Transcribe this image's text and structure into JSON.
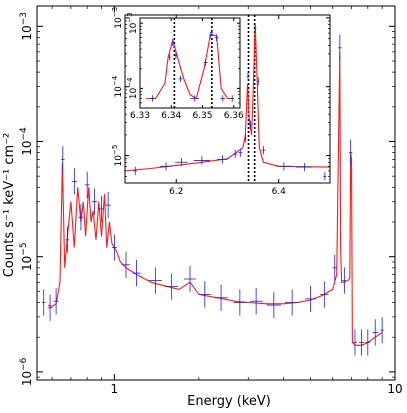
{
  "chart_data": [
    {
      "type": "line",
      "xlabel": "Energy (keV)",
      "ylabel": "Counts s⁻¹ keV⁻¹ cm⁻²",
      "xscale": "log",
      "yscale": "log",
      "xlim": [
        0.53,
        10
      ],
      "ylim": [
        8.5e-07,
        0.0015
      ],
      "x_ticks": [
        {
          "v": 1,
          "label": "1"
        },
        {
          "v": 10,
          "label": "10"
        }
      ],
      "y_ticks": [
        {
          "v": 1e-06,
          "base": "10",
          "exp": "−6"
        },
        {
          "v": 1e-05,
          "base": "10",
          "exp": "−5"
        },
        {
          "v": 0.0001,
          "base": "10",
          "exp": "−4"
        },
        {
          "v": 0.001,
          "base": "10",
          "exp": "−3"
        }
      ],
      "series": [
        {
          "kind": "model",
          "x": [
            0.58,
            0.6,
            0.62,
            0.64,
            0.653,
            0.665,
            0.68,
            0.7,
            0.72,
            0.74,
            0.76,
            0.775,
            0.79,
            0.81,
            0.826,
            0.84,
            0.86,
            0.88,
            0.9,
            0.922,
            0.94,
            0.96,
            0.98,
            1.0,
            1.02,
            1.05,
            1.1,
            1.2,
            1.35,
            1.5,
            1.7,
            1.86,
            2.0,
            2.2,
            2.45,
            2.7,
            3.0,
            3.5,
            4.0,
            4.5,
            5.0,
            5.5,
            6.0,
            6.2,
            6.3,
            6.36,
            6.4,
            6.45,
            6.6,
            6.8,
            6.9,
            6.95,
            7.0,
            7.05,
            7.2,
            7.6,
            8.0,
            8.5,
            9.0
          ],
          "y": [
            3.8e-06,
            3.7e-06,
            3.9e-06,
            6e-06,
            6.5e-05,
            8e-06,
            1.5e-05,
            3e-05,
            1.2e-05,
            4e-05,
            2e-05,
            3e-05,
            1.5e-05,
            4e-05,
            2e-05,
            2.5e-05,
            1.4e-05,
            3e-05,
            1.5e-05,
            3.5e-05,
            1.2e-05,
            2e-05,
            1.3e-05,
            1.2e-05,
            1.1e-05,
            9e-06,
            8e-06,
            7e-06,
            6e-06,
            5.6e-06,
            5.2e-06,
            6e-06,
            4.7e-06,
            4.5e-06,
            4.3e-06,
            4.1e-06,
            4e-06,
            3.9e-06,
            3.9e-06,
            4e-06,
            4.2e-06,
            4.6e-06,
            5.2e-06,
            7e-06,
            0.00012,
            0.0006,
            1.2e-05,
            6e-06,
            6e-06,
            6.2e-06,
            6.5e-06,
            8e-05,
            7e-05,
            1.8e-06,
            1.7e-06,
            1.7e-06,
            1.8e-06,
            2e-06,
            2.2e-06
          ]
        },
        {
          "kind": "data",
          "x": [
            0.56,
            0.59,
            0.62,
            0.655,
            0.68,
            0.72,
            0.76,
            0.8,
            0.85,
            0.9,
            0.95,
            1.0,
            1.1,
            1.2,
            1.4,
            1.6,
            1.86,
            2.1,
            2.4,
            2.8,
            3.2,
            3.7,
            4.3,
            5.0,
            5.6,
            6.1,
            6.36,
            6.6,
            6.95,
            7.2,
            7.6,
            8.0,
            8.5,
            9.0
          ],
          "y": [
            4e-06,
            3.6e-06,
            4.1e-06,
            7e-05,
            1.4e-05,
            4.5e-05,
            2.2e-05,
            4.2e-05,
            3e-05,
            2.6e-05,
            2.8e-05,
            1.2e-05,
            8.5e-06,
            7.2e-06,
            6.2e-06,
            5.5e-06,
            6.4e-06,
            4.7e-06,
            4.4e-06,
            4e-06,
            4.1e-06,
            3.8e-06,
            4e-06,
            4.3e-06,
            4.7e-06,
            8e-06,
            0.00065,
            6.2e-06,
            8e-05,
            1.8e-06,
            1.8e-06,
            1.8e-06,
            2.2e-06,
            2.3e-06
          ]
        }
      ]
    },
    {
      "type": "line",
      "xscale": "linear",
      "yscale": "log",
      "xlim": [
        6.1,
        6.5
      ],
      "ylim": [
        4e-06,
        0.0011
      ],
      "x_ticks": [
        {
          "v": 6.2,
          "label": "6.2"
        },
        {
          "v": 6.4,
          "label": "6.4"
        }
      ],
      "y_ticks": [
        {
          "v": 1e-05,
          "base": "10",
          "exp": "−5"
        },
        {
          "v": 0.0001,
          "base": "10",
          "exp": "−4"
        },
        {
          "v": 0.001,
          "base": "10",
          "exp": "−3"
        }
      ],
      "series": [
        {
          "kind": "model",
          "x": [
            6.1,
            6.15,
            6.2,
            6.25,
            6.3,
            6.33,
            6.335,
            6.339,
            6.343,
            6.347,
            6.35,
            6.354,
            6.358,
            6.362,
            6.37,
            6.4,
            6.5
          ],
          "y": [
            6e-06,
            6.5e-06,
            7.2e-06,
            8e-06,
            9e-06,
            1.3e-05,
            2e-05,
            0.00011,
            3e-05,
            2e-05,
            8e-05,
            0.0008,
            0.00012,
            1.3e-05,
            8e-06,
            7e-06,
            6.8e-06
          ],
          "yerr": []
        },
        {
          "kind": "data",
          "x": [
            6.12,
            6.18,
            6.21,
            6.25,
            6.29,
            6.315,
            6.325,
            6.335,
            6.34,
            6.345,
            6.354,
            6.36,
            6.37,
            6.41,
            6.45,
            6.49
          ],
          "y": [
            6e-06,
            7e-06,
            8e-06,
            8.5e-06,
            8.8e-06,
            1.05e-05,
            1.1e-05,
            1.8e-05,
            0.00014,
            2.8e-05,
            0.0007,
            0.00012,
            1.2e-05,
            7e-06,
            6.8e-06,
            5e-06
          ]
        }
      ],
      "vlines": [
        6.341,
        6.353
      ]
    },
    {
      "type": "line",
      "xscale": "linear",
      "yscale": "log",
      "xlim": [
        6.33,
        6.362
      ],
      "ylim": [
        5e-05,
        0.0012
      ],
      "x_ticks": [
        {
          "v": 6.33,
          "label": "6.33"
        },
        {
          "v": 6.34,
          "label": "6.34"
        },
        {
          "v": 6.35,
          "label": "6.35"
        },
        {
          "v": 6.36,
          "label": "6.36"
        }
      ],
      "y_ticks": [
        {
          "v": 0.0001,
          "base": "10",
          "exp": "−4"
        },
        {
          "v": 0.001,
          "base": "10",
          "exp": "−3"
        }
      ],
      "series": [
        {
          "kind": "model",
          "x": [
            6.332,
            6.335,
            6.338,
            6.339,
            6.3405,
            6.342,
            6.344,
            6.346,
            6.348,
            6.3505,
            6.3525,
            6.3545,
            6.356,
            6.358,
            6.36
          ],
          "y": [
            7e-05,
            7e-05,
            0.00012,
            0.0003,
            0.00055,
            0.0003,
            0.00014,
            8e-05,
            7e-05,
            0.0002,
            0.00065,
            0.00065,
            0.0001,
            7e-05,
            7e-05
          ]
        },
        {
          "kind": "data",
          "x": [
            6.334,
            6.3395,
            6.3405,
            6.3415,
            6.343,
            6.3475,
            6.351,
            6.3525,
            6.353,
            6.3545,
            6.3565,
            6.3595
          ],
          "y": [
            7e-05,
            0.0003,
            0.0005,
            0.00032,
            0.00014,
            7e-05,
            0.00025,
            0.00065,
            0.00072,
            0.0006,
            7e-05,
            7e-05
          ]
        }
      ],
      "vlines": [
        6.341,
        6.353
      ]
    }
  ]
}
